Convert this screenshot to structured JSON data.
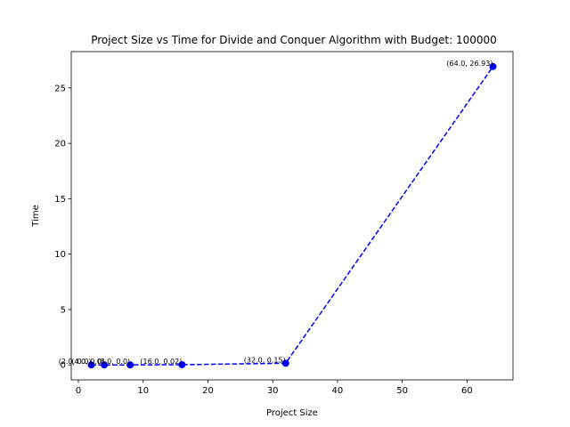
{
  "chart_data": {
    "type": "line",
    "title": "Project Size vs Time for Divide and Conquer Algorithm with Budget: 100000",
    "xlabel": "Project Size",
    "ylabel": "Time",
    "xlim": [
      -1.1,
      67.1
    ],
    "ylim": [
      -1.35,
      28.28
    ],
    "xticks": [
      0,
      10,
      20,
      30,
      40,
      50,
      60
    ],
    "yticks": [
      0,
      5,
      10,
      15,
      20,
      25
    ],
    "grid": false,
    "series": [
      {
        "style": "dashed line with circle markers",
        "color": "#0000ff",
        "x": [
          2,
          4,
          8,
          16,
          32,
          64
        ],
        "y": [
          0.0,
          0.0,
          0.0,
          0.02,
          0.15,
          26.93
        ],
        "labels": [
          "(2.0, 0.0)",
          "(4.0, 0.0)",
          "(8.0, 0.0)",
          "(16.0, 0.02)",
          "(32.0, 0.15)",
          "(64.0, 26.93)"
        ]
      }
    ]
  }
}
